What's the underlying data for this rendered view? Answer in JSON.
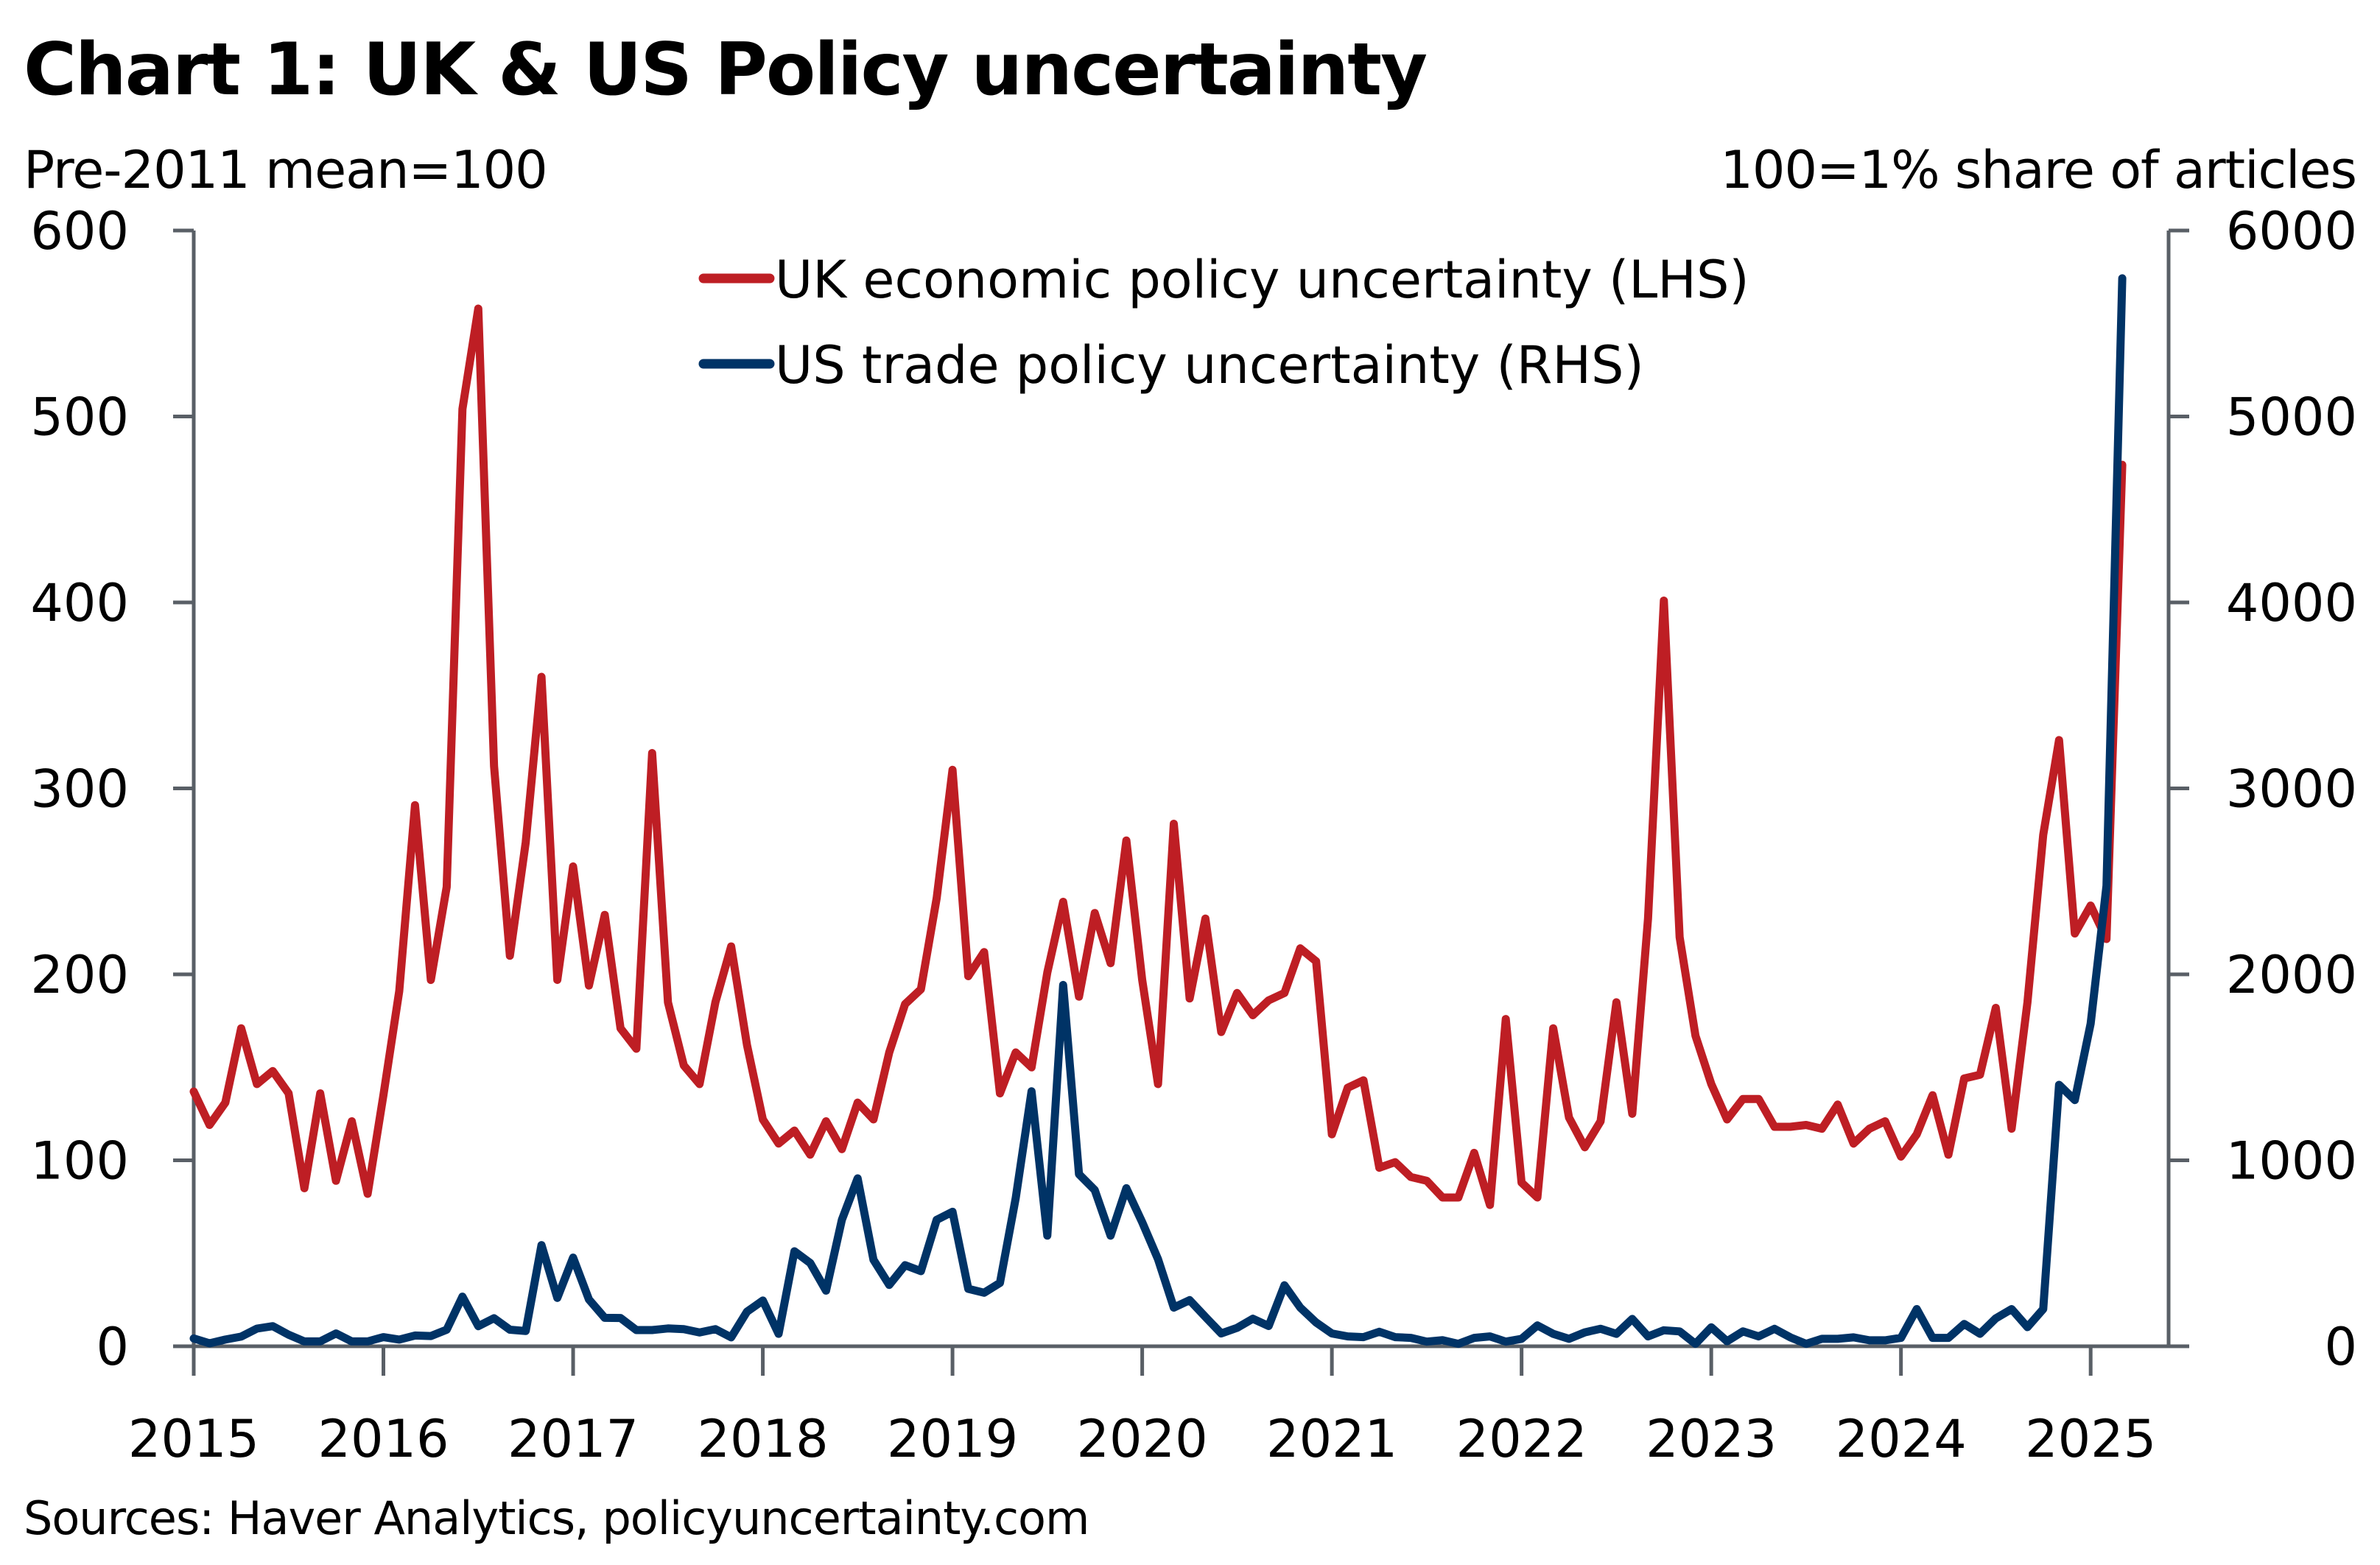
{
  "header": {
    "title": "Chart 1: UK & US Policy uncertainty",
    "left_axis_note": "Pre-2011 mean=100",
    "right_axis_note": "100=1% share of articles"
  },
  "footer": {
    "source": "Sources: Haver Analytics, policyuncertainty.com"
  },
  "colors": {
    "uk": "#BE1E24",
    "us": "#003366",
    "axis": "#595F66"
  },
  "chart_data": {
    "type": "line",
    "title": "Chart 1: UK & US Policy uncertainty",
    "xlabel": "",
    "ylabel_left": "Pre-2011 mean=100",
    "ylabel_right": "100=1% share of articles",
    "frequency": "monthly",
    "x_start": "2015-01",
    "x_end_axis": "2025-05",
    "x_tick_labels": [
      "2015",
      "2016",
      "2017",
      "2018",
      "2019",
      "2020",
      "2021",
      "2022",
      "2023",
      "2024",
      "2025"
    ],
    "ylim_left": [
      0,
      600
    ],
    "yticks_left": [
      0,
      100,
      200,
      300,
      400,
      500,
      600
    ],
    "ylim_right": [
      0,
      6000
    ],
    "yticks_right": [
      0,
      1000,
      2000,
      3000,
      4000,
      5000,
      6000
    ],
    "grid": false,
    "legend_position": "top-center",
    "series": [
      {
        "name": "UK economic policy uncertainty (LHS)",
        "axis": "left",
        "color": "#BE1E24",
        "start": "2015-01",
        "values": [
          137,
          119,
          131,
          171,
          141,
          148,
          136,
          85,
          136,
          89,
          121,
          82,
          135,
          191,
          291,
          197,
          247,
          504,
          558,
          312,
          210,
          271,
          360,
          197,
          258,
          194,
          232,
          171,
          160,
          319,
          185,
          151,
          141,
          185,
          215,
          162,
          122,
          109,
          116,
          103,
          121,
          106,
          131,
          122,
          158,
          184,
          192,
          241,
          310,
          199,
          212,
          136,
          158,
          150,
          201,
          239,
          188,
          233,
          206,
          272,
          197,
          141,
          281,
          187,
          230,
          169,
          190,
          178,
          186,
          190,
          214,
          207,
          114,
          139,
          143,
          96,
          99,
          91,
          89,
          80,
          80,
          104,
          76,
          176,
          88,
          80,
          171,
          123,
          107,
          121,
          185,
          125,
          230,
          401,
          220,
          167,
          141,
          122,
          133,
          133,
          118,
          118,
          119,
          117,
          130,
          109,
          117,
          121,
          102,
          114,
          135,
          103,
          144,
          146,
          182,
          117,
          185,
          275,
          326,
          222,
          237,
          219,
          474
        ]
      },
      {
        "name": "US trade policy uncertainty (RHS)",
        "axis": "right",
        "color": "#003366",
        "start": "2015-01",
        "values": [
          42,
          16,
          36,
          52,
          95,
          108,
          62,
          26,
          26,
          69,
          26,
          26,
          49,
          36,
          58,
          55,
          89,
          267,
          108,
          151,
          89,
          82,
          544,
          260,
          477,
          252,
          153,
          152,
          87,
          87,
          96,
          92,
          74,
          92,
          48,
          186,
          246,
          67,
          511,
          448,
          299,
          680,
          903,
          465,
          330,
          436,
          404,
          680,
          723,
          309,
          288,
          341,
          797,
          1371,
          595,
          1943,
          925,
          840,
          595,
          850,
          667,
          468,
          208,
          248,
          158,
          69,
          99,
          148,
          109,
          328,
          208,
          128,
          69,
          53,
          49,
          78,
          49,
          45,
          25,
          33,
          13,
          45,
          53,
          25,
          40,
          112,
          67,
          40,
          75,
          94,
          67,
          147,
          53,
          86,
          80,
          13,
          102,
          27,
          80,
          53,
          94,
          48,
          13,
          40,
          40,
          48,
          32,
          32,
          45,
          200,
          45,
          45,
          120,
          67,
          150,
          200,
          103,
          200,
          1406,
          1324,
          1735,
          2476,
          5743
        ]
      }
    ]
  }
}
